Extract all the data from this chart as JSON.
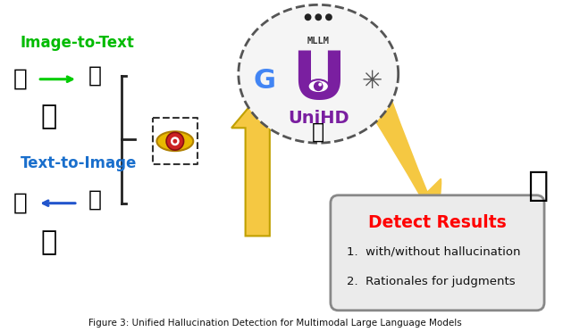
{
  "title": "Figure 3: Unified Hallucination Detection for Multimodal Large Language Models",
  "bg_color": "#ffffff",
  "image_to_text_label": "Image-to-Text",
  "text_to_image_label": "Text-to-Image",
  "unihd_label": "UniHD",
  "mllm_label": "MLLM",
  "detect_title": "Detect Results",
  "detect_item1": "1.  with/without hallucination",
  "detect_item2": "2.  Rationales for judgments",
  "label_green": "#00bb00",
  "label_blue": "#1a6fcc",
  "detect_title_color": "#ff0000",
  "detect_box_bg": "#ebebeb",
  "detect_box_edge": "#888888",
  "arrow_color": "#f5c842",
  "unihd_purple": "#7a1fa0",
  "bracket_color": "#222222",
  "green_arrow": "#00cc00",
  "blue_arrow": "#2255cc"
}
